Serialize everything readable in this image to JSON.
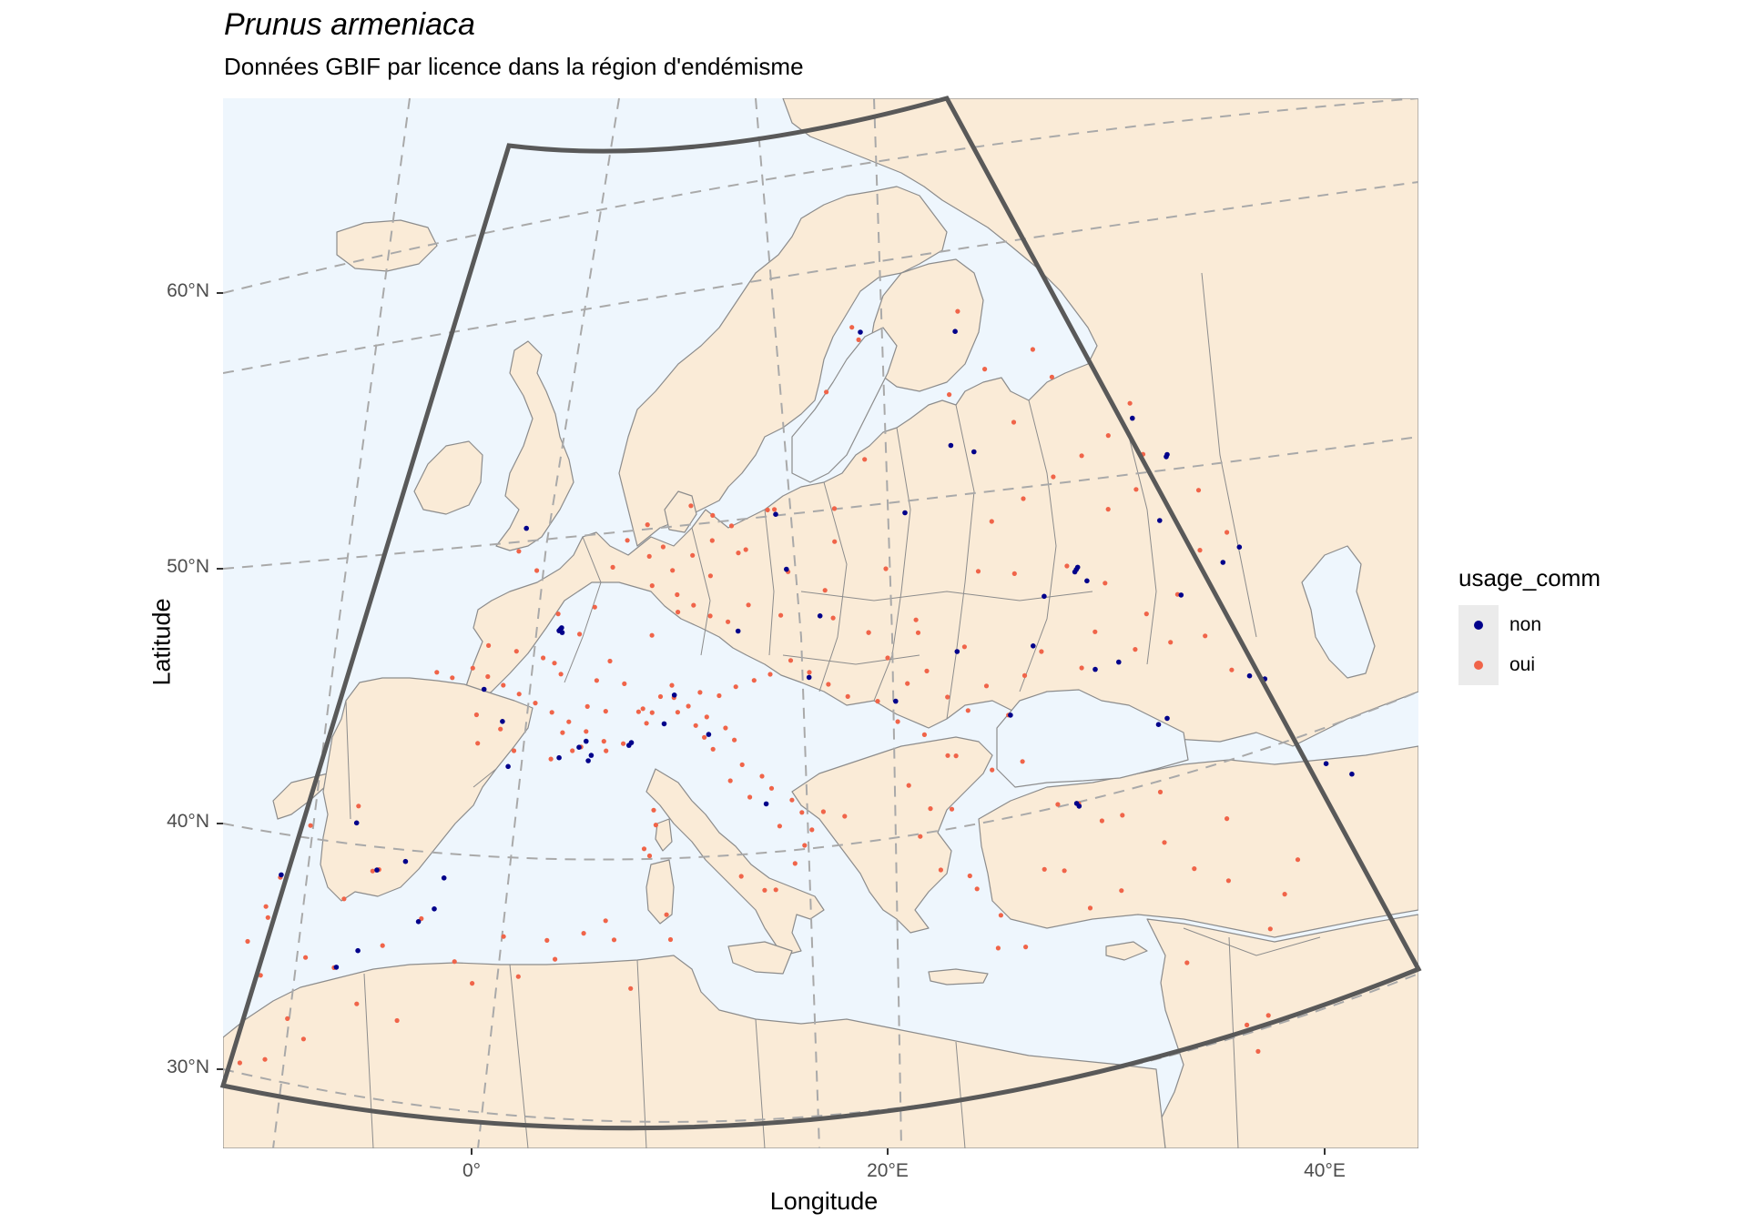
{
  "title": "Prunus armeniaca",
  "subtitle": "Données GBIF par licence dans la région d'endémisme",
  "axes": {
    "xlabel": "Longitude",
    "ylabel": "Latitude",
    "xticks": [
      "0°",
      "20°E",
      "40°E"
    ],
    "yticks": [
      "60°N",
      "50°N",
      "40°N",
      "30°N"
    ]
  },
  "legend": {
    "title": "usage_comm",
    "entries": [
      {
        "label": "non",
        "color": "#00008b"
      },
      {
        "label": "oui",
        "color": "#f06449"
      }
    ]
  },
  "colors": {
    "land": "#faebd7",
    "sea": "#eef6fd",
    "border": "#8c8c8c",
    "frame": "#595959",
    "graticule": "#a9a9a9"
  },
  "map_data": {
    "projection": "lambert conformal conic",
    "region_extent": {
      "lon": [
        -10,
        45
      ],
      "lat": [
        30,
        70
      ]
    },
    "occurrences_oui": [
      [
        -2,
        48
      ],
      [
        -1,
        47.5
      ],
      [
        0,
        47
      ],
      [
        1,
        46.5
      ],
      [
        2,
        46
      ],
      [
        3,
        45.5
      ],
      [
        4,
        45
      ],
      [
        5,
        44.5
      ],
      [
        6,
        44
      ],
      [
        4.5,
        43.8
      ],
      [
        3.5,
        43.6
      ],
      [
        1.5,
        44.2
      ],
      [
        0.5,
        45.2
      ],
      [
        -0.5,
        44.8
      ],
      [
        -1,
        46
      ],
      [
        2.5,
        47.5
      ],
      [
        3.5,
        48.5
      ],
      [
        2.3,
        48.8
      ],
      [
        4,
        49.5
      ],
      [
        5.5,
        47.2
      ],
      [
        6.5,
        46.2
      ],
      [
        5,
        46.5
      ],
      [
        3,
        47
      ],
      [
        1.8,
        47.8
      ],
      [
        0.2,
        48.3
      ],
      [
        -3,
        47.8
      ],
      [
        -4,
        48.2
      ],
      [
        -1.5,
        48.8
      ],
      [
        2,
        49.5
      ],
      [
        4.8,
        45.5
      ],
      [
        5.8,
        45.2
      ],
      [
        6.2,
        43.6
      ],
      [
        7,
        43.8
      ],
      [
        4.9,
        43.9
      ],
      [
        3.8,
        44.6
      ],
      [
        7.5,
        45
      ],
      [
        8,
        44.5
      ],
      [
        8.5,
        45.5
      ],
      [
        9.2,
        45.4
      ],
      [
        10,
        45
      ],
      [
        11,
        44.5
      ],
      [
        12,
        44
      ],
      [
        12.5,
        43.5
      ],
      [
        11.5,
        43.2
      ],
      [
        13,
        42.5
      ],
      [
        14,
        42
      ],
      [
        14.5,
        41.5
      ],
      [
        15.5,
        41
      ],
      [
        16,
        40.5
      ],
      [
        16.5,
        39.8
      ],
      [
        17,
        40.5
      ],
      [
        15,
        40
      ],
      [
        13.5,
        41.2
      ],
      [
        12.5,
        41.9
      ],
      [
        11,
        43.7
      ],
      [
        10.5,
        44.2
      ],
      [
        9.5,
        44.8
      ],
      [
        8.2,
        44.9
      ],
      [
        7.7,
        45.1
      ],
      [
        9,
        45.9
      ],
      [
        10.5,
        45.5
      ],
      [
        11.5,
        45.3
      ],
      [
        12.3,
        45.6
      ],
      [
        13.2,
        45.8
      ],
      [
        15.8,
        38.5
      ],
      [
        16.2,
        39.2
      ],
      [
        18,
        40.3
      ],
      [
        7,
        50
      ],
      [
        8,
        50.5
      ],
      [
        9,
        51
      ],
      [
        10,
        51.5
      ],
      [
        11,
        52
      ],
      [
        12,
        51
      ],
      [
        13,
        52.5
      ],
      [
        8.5,
        49.5
      ],
      [
        9.5,
        49
      ],
      [
        10.5,
        48.5
      ],
      [
        11.5,
        48.2
      ],
      [
        12.5,
        48.8
      ],
      [
        7.5,
        48
      ],
      [
        8.7,
        48.8
      ],
      [
        6.5,
        51.2
      ],
      [
        7.2,
        51.5
      ],
      [
        9.8,
        52.5
      ],
      [
        13.4,
        52.5
      ],
      [
        11.6,
        50.9
      ],
      [
        10.2,
        50.1
      ],
      [
        8.4,
        53
      ],
      [
        6,
        52.5
      ],
      [
        5,
        52
      ],
      [
        4.5,
        51
      ],
      [
        -8.6,
        41.1
      ],
      [
        -8.8,
        40
      ],
      [
        -9.1,
        38.7
      ],
      [
        -8.5,
        39.5
      ],
      [
        -7.9,
        37.1
      ],
      [
        -4,
        40.4
      ],
      [
        -3.7,
        40.4
      ],
      [
        -5,
        39.5
      ],
      [
        -1,
        38
      ],
      [
        -0.4,
        39.5
      ],
      [
        -2.5,
        37.2
      ],
      [
        -4.5,
        36.7
      ],
      [
        -6,
        37.4
      ],
      [
        -8,
        43
      ],
      [
        -5.8,
        43.3
      ],
      [
        14,
        46
      ],
      [
        15,
        46.5
      ],
      [
        16,
        46
      ],
      [
        17,
        45.5
      ],
      [
        18,
        45
      ],
      [
        19,
        47.5
      ],
      [
        20,
        46.5
      ],
      [
        21,
        45.5
      ],
      [
        22,
        46
      ],
      [
        23,
        45
      ],
      [
        24,
        44.5
      ],
      [
        25,
        45.5
      ],
      [
        26,
        44.4
      ],
      [
        27,
        46
      ],
      [
        28,
        47
      ],
      [
        24,
        47
      ],
      [
        21.5,
        48
      ],
      [
        19.5,
        44.8
      ],
      [
        20.5,
        44
      ],
      [
        21.8,
        43.5
      ],
      [
        22.9,
        42.7
      ],
      [
        23.3,
        42.7
      ],
      [
        25,
        42.2
      ],
      [
        26.5,
        42.6
      ],
      [
        21,
        41.5
      ],
      [
        22,
        40.6
      ],
      [
        23,
        40.6
      ],
      [
        21.5,
        39.5
      ],
      [
        22.4,
        38.2
      ],
      [
        23.7,
        38
      ],
      [
        24,
        37.5
      ],
      [
        25,
        36.5
      ],
      [
        26,
        35.3
      ],
      [
        24.8,
        35.2
      ],
      [
        25,
        50
      ],
      [
        27,
        50
      ],
      [
        30,
        50.5
      ],
      [
        32,
        50
      ],
      [
        34,
        49
      ],
      [
        31,
        48
      ],
      [
        33,
        47.5
      ],
      [
        35,
        48
      ],
      [
        30,
        46.5
      ],
      [
        36,
        50
      ],
      [
        37,
        48.5
      ],
      [
        38,
        47.3
      ],
      [
        26,
        52
      ],
      [
        28,
        53
      ],
      [
        30,
        54
      ],
      [
        32,
        55
      ],
      [
        34,
        56
      ],
      [
        36,
        55.5
      ],
      [
        37.6,
        55.7
      ],
      [
        35,
        54
      ],
      [
        33,
        53
      ],
      [
        39,
        54.5
      ],
      [
        40,
        53
      ],
      [
        38,
        52
      ],
      [
        31,
        58
      ],
      [
        36,
        57.5
      ],
      [
        30,
        59
      ],
      [
        28,
        56
      ],
      [
        28,
        41
      ],
      [
        29,
        41.1
      ],
      [
        30,
        40.5
      ],
      [
        31,
        40.8
      ],
      [
        32.8,
        39.9
      ],
      [
        34,
        39
      ],
      [
        35.5,
        38.7
      ],
      [
        37,
        37
      ],
      [
        38,
        38.5
      ],
      [
        39,
        40
      ],
      [
        36,
        41.2
      ],
      [
        33,
        41.9
      ],
      [
        30.5,
        37.8
      ],
      [
        28,
        38.4
      ],
      [
        27.1,
        38.4
      ],
      [
        29,
        37
      ],
      [
        33,
        35.2
      ],
      [
        35.2,
        33
      ],
      [
        35.5,
        32
      ],
      [
        36.2,
        33.5
      ],
      [
        -5,
        34
      ],
      [
        -6.5,
        33.5
      ],
      [
        -7.6,
        33.6
      ],
      [
        -6,
        35
      ],
      [
        -3,
        35
      ],
      [
        -1,
        34
      ],
      [
        1,
        36
      ],
      [
        3,
        36.7
      ],
      [
        5,
        36.3
      ],
      [
        6.6,
        36.4
      ],
      [
        8,
        36
      ],
      [
        9,
        34
      ],
      [
        10.2,
        36.8
      ],
      [
        10.5,
        35.8
      ],
      [
        2,
        35
      ],
      [
        4,
        35
      ],
      [
        -8,
        31.6
      ],
      [
        -9.5,
        30.4
      ],
      [
        5.5,
        35.5
      ],
      [
        7.5,
        36.8
      ],
      [
        9,
        41
      ],
      [
        9.2,
        40.4
      ],
      [
        8.8,
        39.5
      ],
      [
        9.1,
        39.2
      ],
      [
        14.5,
        37.5
      ],
      [
        13.4,
        38.1
      ],
      [
        15,
        37.5
      ],
      [
        18,
        59
      ],
      [
        17.5,
        59.5
      ],
      [
        16,
        57
      ],
      [
        25,
        60.2
      ],
      [
        24.7,
        59.4
      ],
      [
        26.5,
        58
      ],
      [
        24,
        56.9
      ],
      [
        25.3,
        54.7
      ],
      [
        23.9,
        54.9
      ],
      [
        21,
        52.2
      ],
      [
        19.9,
        50
      ],
      [
        17,
        51.1
      ],
      [
        18.6,
        54.3
      ],
      [
        16.9,
        52.4
      ],
      [
        14.5,
        50
      ],
      [
        16.6,
        49.2
      ],
      [
        17.1,
        48.1
      ],
      [
        14.3,
        48.3
      ],
      [
        16.4,
        48.2
      ],
      [
        19,
        47.5
      ],
      [
        21.6,
        47.5
      ],
      [
        -1.5,
        52.5
      ],
      [
        0,
        51.5
      ]
    ],
    "occurrences_non": [
      [
        2.35,
        48.85
      ],
      [
        2.4,
        48.9
      ],
      [
        2.3,
        48.8
      ],
      [
        2.5,
        48.7
      ],
      [
        4.8,
        43.9
      ],
      [
        5.4,
        43.3
      ],
      [
        5.5,
        43.5
      ],
      [
        5.1,
        44.1
      ],
      [
        7.3,
        43.7
      ],
      [
        7.4,
        43.8
      ],
      [
        8.9,
        44.4
      ],
      [
        9.2,
        45.5
      ],
      [
        11.2,
        43.8
      ],
      [
        0.5,
        45.5
      ],
      [
        -1,
        47
      ],
      [
        1.4,
        43.6
      ],
      [
        3.9,
        43.6
      ],
      [
        -1.5,
        53.4
      ],
      [
        -2.5,
        40.5
      ],
      [
        -3.8,
        40.4
      ],
      [
        -1.1,
        37.9
      ],
      [
        -0.5,
        38.3
      ],
      [
        -4.4,
        36.7
      ],
      [
        -3.6,
        37.2
      ],
      [
        -0.4,
        39.5
      ],
      [
        -8.6,
        41.2
      ],
      [
        -5.6,
        42.6
      ],
      [
        13.5,
        52.3
      ],
      [
        16.4,
        48.2
      ],
      [
        14.4,
        50.1
      ],
      [
        12.1,
        47.8
      ],
      [
        16,
        45.8
      ],
      [
        18.1,
        59.3
      ],
      [
        24.7,
        59.4
      ],
      [
        25.3,
        54.7
      ],
      [
        23.9,
        54.9
      ],
      [
        21,
        52.2
      ],
      [
        30.5,
        50.4
      ],
      [
        30.6,
        50.5
      ],
      [
        30.4,
        50.3
      ],
      [
        31,
        50
      ],
      [
        28.5,
        49.2
      ],
      [
        32,
        46.9
      ],
      [
        30.7,
        46.5
      ],
      [
        33.5,
        44.6
      ],
      [
        34,
        44.9
      ],
      [
        36.2,
        50
      ],
      [
        37.6,
        55.7
      ],
      [
        36,
        52.9
      ],
      [
        39.7,
        47.2
      ],
      [
        39.2,
        51.7
      ],
      [
        38.9,
        47.2
      ],
      [
        37.5,
        55.6
      ],
      [
        35.9,
        56.9
      ],
      [
        40.5,
        52.5
      ],
      [
        29,
        41
      ],
      [
        28.9,
        41.1
      ],
      [
        14.3,
        40.9
      ],
      [
        20.4,
        44.8
      ],
      [
        26.1,
        44.4
      ],
      [
        27.6,
        47.2
      ],
      [
        23.6,
        46.8
      ],
      [
        42.9,
        44
      ],
      [
        41.7,
        44.2
      ]
    ]
  }
}
